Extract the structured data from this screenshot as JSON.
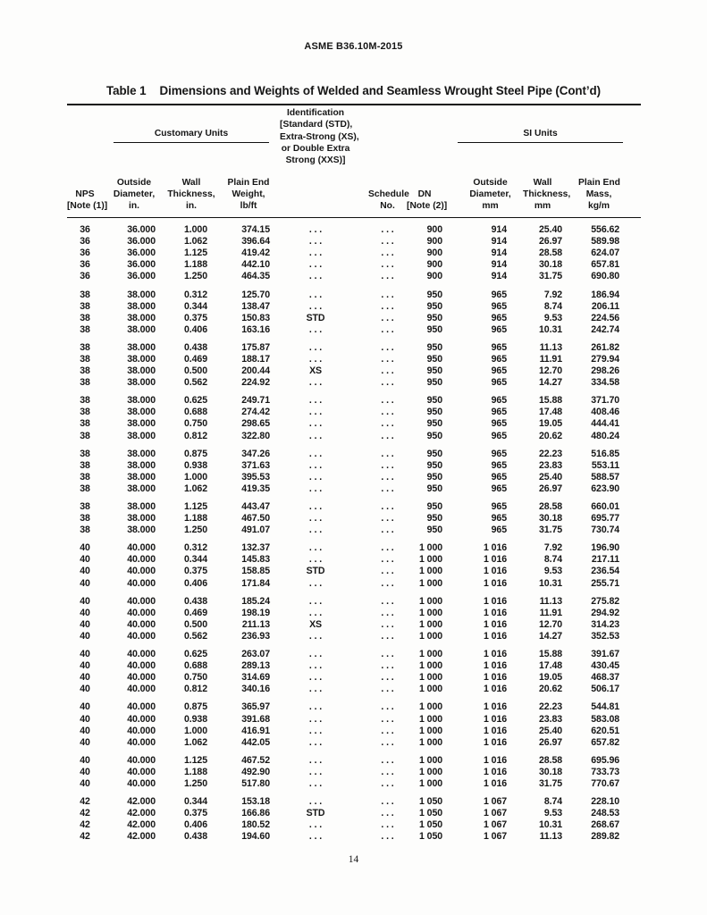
{
  "page": {
    "doc_header": "ASME B36.10M-2015",
    "page_number": "14"
  },
  "table": {
    "title_label": "Table 1",
    "title_text": "Dimensions and Weights of Welded and Seamless Wrought Steel Pipe (Cont’d)",
    "header": {
      "nps": "NPS\n[Note (1)]",
      "customary_group": "Customary Units",
      "customary_cols": [
        "Outside\nDiameter,\nin.",
        "Wall\nThickness,\nin.",
        "Plain End\nWeight,\nlb/ft"
      ],
      "identification": "Identification\n[Standard (STD),\nExtra-Strong (XS),\nor Double Extra\nStrong (XXS)]",
      "schedule": "Schedule\nNo.",
      "dn": "DN\n[Note (2)]",
      "si_group": "SI Units",
      "si_cols": [
        "Outside\nDiameter,\nmm",
        "Wall\nThickness,\nmm",
        "Plain End\nMass,\nkg/m"
      ]
    },
    "column_keys": [
      "nps",
      "od-in",
      "wall-in",
      "weight-lbft",
      "identification",
      "schedule-no",
      "dn",
      "od-mm",
      "wall-mm",
      "mass-kgm"
    ],
    "row_groups": [
      [
        [
          "36",
          "36.000",
          "1.000",
          "374.15",
          ". . .",
          ". . .",
          "900",
          "914",
          "25.40",
          "556.62"
        ],
        [
          "36",
          "36.000",
          "1.062",
          "396.64",
          ". . .",
          ". . .",
          "900",
          "914",
          "26.97",
          "589.98"
        ],
        [
          "36",
          "36.000",
          "1.125",
          "419.42",
          ". . .",
          ". . .",
          "900",
          "914",
          "28.58",
          "624.07"
        ],
        [
          "36",
          "36.000",
          "1.188",
          "442.10",
          ". . .",
          ". . .",
          "900",
          "914",
          "30.18",
          "657.81"
        ],
        [
          "36",
          "36.000",
          "1.250",
          "464.35",
          ". . .",
          ". . .",
          "900",
          "914",
          "31.75",
          "690.80"
        ]
      ],
      [
        [
          "38",
          "38.000",
          "0.312",
          "125.70",
          ". . .",
          ". . .",
          "950",
          "965",
          "7.92",
          "186.94"
        ],
        [
          "38",
          "38.000",
          "0.344",
          "138.47",
          ". . .",
          ". . .",
          "950",
          "965",
          "8.74",
          "206.11"
        ],
        [
          "38",
          "38.000",
          "0.375",
          "150.83",
          "STD",
          ". . .",
          "950",
          "965",
          "9.53",
          "224.56"
        ],
        [
          "38",
          "38.000",
          "0.406",
          "163.16",
          ". . .",
          ". . .",
          "950",
          "965",
          "10.31",
          "242.74"
        ]
      ],
      [
        [
          "38",
          "38.000",
          "0.438",
          "175.87",
          ". . .",
          ". . .",
          "950",
          "965",
          "11.13",
          "261.82"
        ],
        [
          "38",
          "38.000",
          "0.469",
          "188.17",
          ". . .",
          ". . .",
          "950",
          "965",
          "11.91",
          "279.94"
        ],
        [
          "38",
          "38.000",
          "0.500",
          "200.44",
          "XS",
          ". . .",
          "950",
          "965",
          "12.70",
          "298.26"
        ],
        [
          "38",
          "38.000",
          "0.562",
          "224.92",
          ". . .",
          ". . .",
          "950",
          "965",
          "14.27",
          "334.58"
        ]
      ],
      [
        [
          "38",
          "38.000",
          "0.625",
          "249.71",
          ". . .",
          ". . .",
          "950",
          "965",
          "15.88",
          "371.70"
        ],
        [
          "38",
          "38.000",
          "0.688",
          "274.42",
          ". . .",
          ". . .",
          "950",
          "965",
          "17.48",
          "408.46"
        ],
        [
          "38",
          "38.000",
          "0.750",
          "298.65",
          ". . .",
          ". . .",
          "950",
          "965",
          "19.05",
          "444.41"
        ],
        [
          "38",
          "38.000",
          "0.812",
          "322.80",
          ". . .",
          ". . .",
          "950",
          "965",
          "20.62",
          "480.24"
        ]
      ],
      [
        [
          "38",
          "38.000",
          "0.875",
          "347.26",
          ". . .",
          ". . .",
          "950",
          "965",
          "22.23",
          "516.85"
        ],
        [
          "38",
          "38.000",
          "0.938",
          "371.63",
          ". . .",
          ". . .",
          "950",
          "965",
          "23.83",
          "553.11"
        ],
        [
          "38",
          "38.000",
          "1.000",
          "395.53",
          ". . .",
          ". . .",
          "950",
          "965",
          "25.40",
          "588.57"
        ],
        [
          "38",
          "38.000",
          "1.062",
          "419.35",
          ". . .",
          ". . .",
          "950",
          "965",
          "26.97",
          "623.90"
        ]
      ],
      [
        [
          "38",
          "38.000",
          "1.125",
          "443.47",
          ". . .",
          ". . .",
          "950",
          "965",
          "28.58",
          "660.01"
        ],
        [
          "38",
          "38.000",
          "1.188",
          "467.50",
          ". . .",
          ". . .",
          "950",
          "965",
          "30.18",
          "695.77"
        ],
        [
          "38",
          "38.000",
          "1.250",
          "491.07",
          ". . .",
          ". . .",
          "950",
          "965",
          "31.75",
          "730.74"
        ]
      ],
      [
        [
          "40",
          "40.000",
          "0.312",
          "132.37",
          ". . .",
          ". . .",
          "1 000",
          "1 016",
          "7.92",
          "196.90"
        ],
        [
          "40",
          "40.000",
          "0.344",
          "145.83",
          ". . .",
          ". . .",
          "1 000",
          "1 016",
          "8.74",
          "217.11"
        ],
        [
          "40",
          "40.000",
          "0.375",
          "158.85",
          "STD",
          ". . .",
          "1 000",
          "1 016",
          "9.53",
          "236.54"
        ],
        [
          "40",
          "40.000",
          "0.406",
          "171.84",
          ". . .",
          ". . .",
          "1 000",
          "1 016",
          "10.31",
          "255.71"
        ]
      ],
      [
        [
          "40",
          "40.000",
          "0.438",
          "185.24",
          ". . .",
          ". . .",
          "1 000",
          "1 016",
          "11.13",
          "275.82"
        ],
        [
          "40",
          "40.000",
          "0.469",
          "198.19",
          ". . .",
          ". . .",
          "1 000",
          "1 016",
          "11.91",
          "294.92"
        ],
        [
          "40",
          "40.000",
          "0.500",
          "211.13",
          "XS",
          ". . .",
          "1 000",
          "1 016",
          "12.70",
          "314.23"
        ],
        [
          "40",
          "40.000",
          "0.562",
          "236.93",
          ". . .",
          ". . .",
          "1 000",
          "1 016",
          "14.27",
          "352.53"
        ]
      ],
      [
        [
          "40",
          "40.000",
          "0.625",
          "263.07",
          ". . .",
          ". . .",
          "1 000",
          "1 016",
          "15.88",
          "391.67"
        ],
        [
          "40",
          "40.000",
          "0.688",
          "289.13",
          ". . .",
          ". . .",
          "1 000",
          "1 016",
          "17.48",
          "430.45"
        ],
        [
          "40",
          "40.000",
          "0.750",
          "314.69",
          ". . .",
          ". . .",
          "1 000",
          "1 016",
          "19.05",
          "468.37"
        ],
        [
          "40",
          "40.000",
          "0.812",
          "340.16",
          ". . .",
          ". . .",
          "1 000",
          "1 016",
          "20.62",
          "506.17"
        ]
      ],
      [
        [
          "40",
          "40.000",
          "0.875",
          "365.97",
          ". . .",
          ". . .",
          "1 000",
          "1 016",
          "22.23",
          "544.81"
        ],
        [
          "40",
          "40.000",
          "0.938",
          "391.68",
          ". . .",
          ". . .",
          "1 000",
          "1 016",
          "23.83",
          "583.08"
        ],
        [
          "40",
          "40.000",
          "1.000",
          "416.91",
          ". . .",
          ". . .",
          "1 000",
          "1 016",
          "25.40",
          "620.51"
        ],
        [
          "40",
          "40.000",
          "1.062",
          "442.05",
          ". . .",
          ". . .",
          "1 000",
          "1 016",
          "26.97",
          "657.82"
        ]
      ],
      [
        [
          "40",
          "40.000",
          "1.125",
          "467.52",
          ". . .",
          ". . .",
          "1 000",
          "1 016",
          "28.58",
          "695.96"
        ],
        [
          "40",
          "40.000",
          "1.188",
          "492.90",
          ". . .",
          ". . .",
          "1 000",
          "1 016",
          "30.18",
          "733.73"
        ],
        [
          "40",
          "40.000",
          "1.250",
          "517.80",
          ". . .",
          ". . .",
          "1 000",
          "1 016",
          "31.75",
          "770.67"
        ]
      ],
      [
        [
          "42",
          "42.000",
          "0.344",
          "153.18",
          ". . .",
          ". . .",
          "1 050",
          "1 067",
          "8.74",
          "228.10"
        ],
        [
          "42",
          "42.000",
          "0.375",
          "166.86",
          "STD",
          ". . .",
          "1 050",
          "1 067",
          "9.53",
          "248.53"
        ],
        [
          "42",
          "42.000",
          "0.406",
          "180.52",
          ". . .",
          ". . .",
          "1 050",
          "1 067",
          "10.31",
          "268.67"
        ],
        [
          "42",
          "42.000",
          "0.438",
          "194.60",
          ". . .",
          ". . .",
          "1 050",
          "1 067",
          "11.13",
          "289.82"
        ]
      ]
    ]
  }
}
